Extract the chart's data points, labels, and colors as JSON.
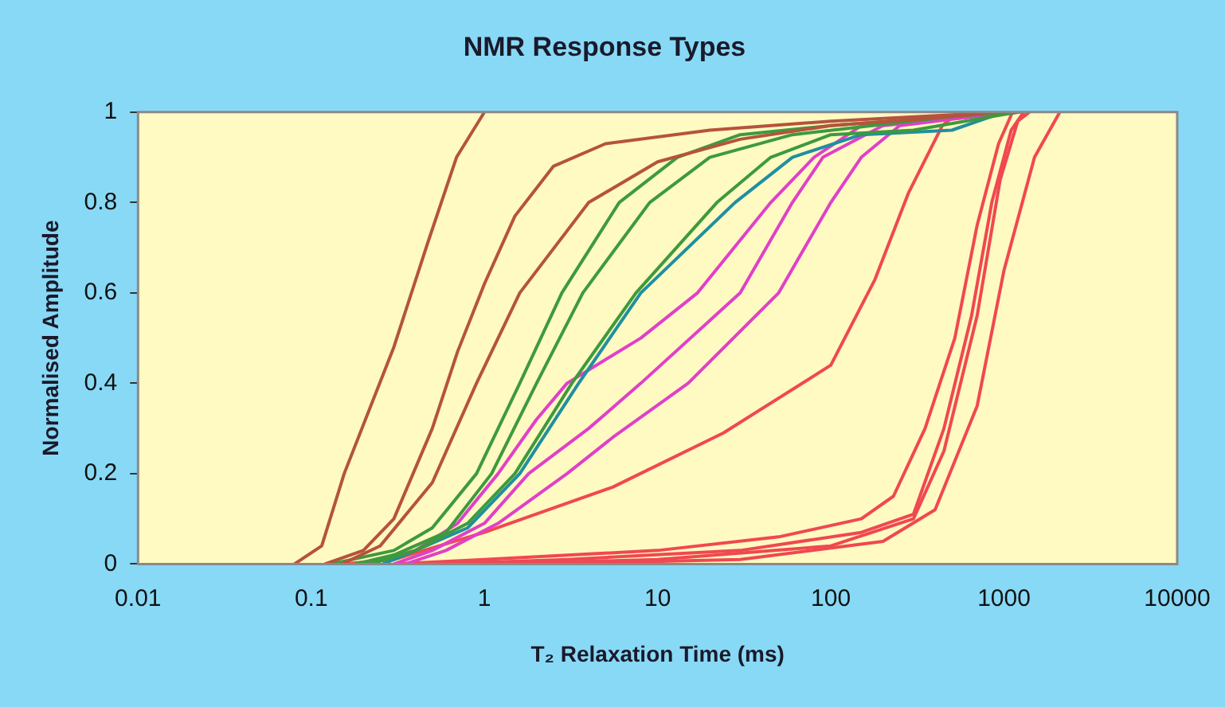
{
  "chart_data": {
    "type": "line",
    "title": "NMR Response Types",
    "xlabel": "T₂ Relaxation Time (ms)",
    "ylabel": "Normalised Amplitude",
    "log": "x",
    "xlim": [
      0.01,
      10000
    ],
    "xticks": [
      0.01,
      0.1,
      1,
      10,
      100,
      1000,
      10000
    ],
    "ylim": [
      0,
      1
    ],
    "yticks": [
      0,
      0.2,
      0.4,
      0.6,
      0.8,
      1
    ],
    "legend": false,
    "series": [
      {
        "color": "#b5533c",
        "x": [
          0.08,
          0.115,
          0.155,
          0.3,
          0.47,
          0.69,
          1
        ],
        "values": [
          0,
          0.04,
          0.2,
          0.48,
          0.71,
          0.9,
          1
        ]
      },
      {
        "color": "#b5533c",
        "x": [
          0.12,
          0.2,
          0.3,
          0.5,
          0.7,
          1,
          1.5,
          2.5,
          5,
          20,
          100,
          1000
        ],
        "values": [
          0,
          0.03,
          0.1,
          0.3,
          0.47,
          0.62,
          0.77,
          0.88,
          0.93,
          0.96,
          0.98,
          1
        ]
      },
      {
        "color": "#b5533c",
        "x": [
          0.15,
          0.25,
          0.5,
          0.9,
          1.6,
          4,
          10,
          30,
          100,
          500,
          900
        ],
        "values": [
          0,
          0.04,
          0.18,
          0.4,
          0.6,
          0.8,
          0.89,
          0.94,
          0.97,
          0.99,
          1
        ]
      },
      {
        "color": "#3d9a3d",
        "x": [
          0.13,
          0.3,
          0.5,
          0.9,
          1.6,
          2.8,
          6,
          13,
          30,
          100,
          1100
        ],
        "values": [
          0,
          0.03,
          0.08,
          0.2,
          0.4,
          0.6,
          0.8,
          0.9,
          0.95,
          0.97,
          1
        ]
      },
      {
        "color": "#3d9a3d",
        "x": [
          0.18,
          0.3,
          0.6,
          1.1,
          2,
          3.7,
          9,
          20,
          60,
          850
        ],
        "values": [
          0,
          0.02,
          0.07,
          0.2,
          0.4,
          0.6,
          0.8,
          0.9,
          0.95,
          1
        ]
      },
      {
        "color": "#3d9a3d",
        "x": [
          0.22,
          0.4,
          0.8,
          1.5,
          3.2,
          7.5,
          22,
          45,
          100,
          300,
          1200
        ],
        "values": [
          0,
          0.03,
          0.09,
          0.2,
          0.4,
          0.6,
          0.8,
          0.9,
          0.95,
          0.96,
          1
        ]
      },
      {
        "color": "#1f8fa0",
        "x": [
          0.26,
          0.4,
          0.8,
          1.6,
          3.5,
          8,
          28,
          60,
          150,
          500,
          1000
        ],
        "values": [
          0,
          0.03,
          0.08,
          0.2,
          0.4,
          0.6,
          0.8,
          0.9,
          0.95,
          0.96,
          1
        ]
      },
      {
        "color": "#e040c8",
        "x": [
          0.21,
          0.4,
          0.7,
          1.2,
          2,
          3,
          8,
          17,
          45,
          80,
          150,
          1050
        ],
        "values": [
          0,
          0.03,
          0.09,
          0.2,
          0.32,
          0.4,
          0.5,
          0.6,
          0.8,
          0.9,
          0.97,
          1
        ]
      },
      {
        "color": "#e040c8",
        "x": [
          0.3,
          0.5,
          1,
          1.8,
          4,
          8,
          30,
          60,
          90,
          200,
          1250
        ],
        "values": [
          0,
          0.03,
          0.09,
          0.2,
          0.3,
          0.4,
          0.6,
          0.8,
          0.9,
          0.97,
          1
        ]
      },
      {
        "color": "#e040c8",
        "x": [
          0.35,
          0.6,
          1.2,
          3,
          5.5,
          15,
          50,
          100,
          150,
          250,
          1080
        ],
        "values": [
          0,
          0.03,
          0.09,
          0.2,
          0.28,
          0.4,
          0.6,
          0.8,
          0.9,
          0.97,
          1
        ]
      },
      {
        "color": "#f04850",
        "x": [
          0.15,
          0.3,
          1,
          5.5,
          24,
          100,
          180,
          280,
          440,
          550
        ],
        "values": [
          0,
          0.01,
          0.07,
          0.17,
          0.29,
          0.44,
          0.63,
          0.82,
          0.97,
          1
        ]
      },
      {
        "color": "#f04850",
        "x": [
          0.3,
          1,
          10,
          50,
          150,
          230,
          350,
          520,
          700,
          930,
          1120
        ],
        "values": [
          0,
          0.01,
          0.03,
          0.06,
          0.1,
          0.15,
          0.3,
          0.5,
          0.75,
          0.93,
          1
        ]
      },
      {
        "color": "#f04850",
        "x": [
          0.5,
          3,
          30,
          150,
          300,
          450,
          650,
          850,
          1100,
          1300
        ],
        "values": [
          0,
          0.01,
          0.03,
          0.07,
          0.11,
          0.3,
          0.55,
          0.8,
          0.96,
          1
        ]
      },
      {
        "color": "#f04850",
        "x": [
          1,
          10,
          100,
          300,
          450,
          700,
          950,
          1200,
          1400
        ],
        "values": [
          0,
          0.01,
          0.04,
          0.1,
          0.25,
          0.55,
          0.85,
          0.98,
          1
        ]
      },
      {
        "color": "#f04850",
        "x": [
          2,
          30,
          200,
          400,
          700,
          1000,
          1500,
          2100
        ],
        "values": [
          0,
          0.01,
          0.05,
          0.12,
          0.35,
          0.65,
          0.9,
          1
        ]
      }
    ]
  }
}
